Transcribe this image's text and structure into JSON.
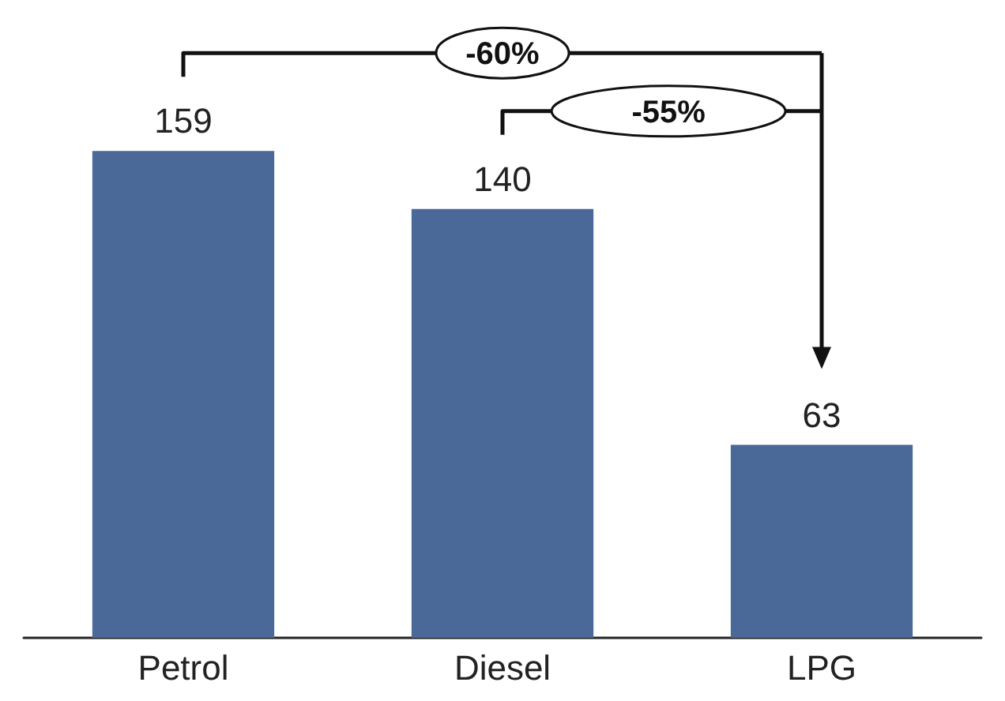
{
  "chart_data": {
    "type": "bar",
    "categories": [
      "Petrol",
      "Diesel",
      "LPG"
    ],
    "values": [
      159,
      140,
      63
    ],
    "color": "#4a6898",
    "data_labels": true,
    "annotations": [
      "-60%",
      "-55%"
    ]
  }
}
